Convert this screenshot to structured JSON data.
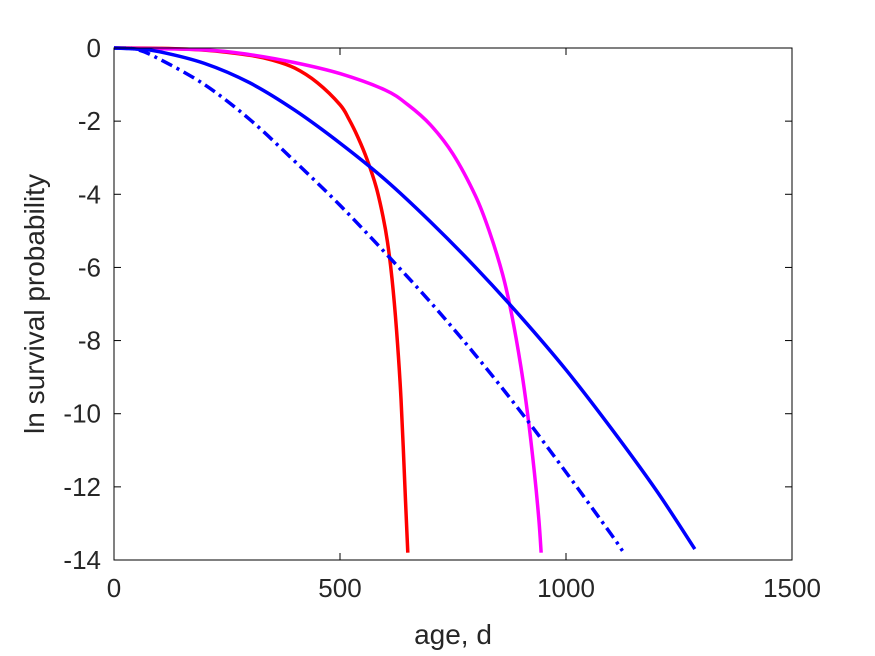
{
  "chart_data": {
    "type": "line",
    "title": "",
    "xlabel": "age, d",
    "ylabel": "ln survival probability",
    "xlim": [
      0,
      1500
    ],
    "ylim": [
      -14,
      0
    ],
    "xticks": [
      0,
      500,
      1000,
      1500
    ],
    "yticks": [
      0,
      -2,
      -4,
      -6,
      -8,
      -10,
      -12,
      -14
    ],
    "xtick_labels": [
      "0",
      "500",
      "1000",
      "1500"
    ],
    "ytick_labels": [
      "0",
      "-2",
      "-4",
      "-6",
      "-8",
      "-10",
      "-12",
      "-14"
    ],
    "grid": false,
    "legend": "none",
    "series": [
      {
        "color": "#ff0000",
        "style": "solid",
        "x": [
          0,
          100,
          200,
          300,
          350,
          400,
          450,
          500,
          520,
          540,
          560,
          580,
          595,
          605,
          615,
          625,
          635,
          645,
          650
        ],
        "y": [
          0,
          -0.01,
          -0.06,
          -0.2,
          -0.33,
          -0.55,
          -0.95,
          -1.55,
          -1.95,
          -2.45,
          -3.05,
          -3.8,
          -4.6,
          -5.3,
          -6.3,
          -7.7,
          -9.6,
          -12.4,
          -13.8
        ]
      },
      {
        "color": "#ff00ff",
        "style": "solid",
        "x": [
          0,
          200,
          300,
          400,
          500,
          600,
          650,
          700,
          750,
          800,
          830,
          860,
          880,
          900,
          915,
          930,
          940,
          945
        ],
        "y": [
          0,
          -0.05,
          -0.18,
          -0.4,
          -0.7,
          -1.15,
          -1.55,
          -2.1,
          -2.9,
          -4.05,
          -5.0,
          -6.2,
          -7.3,
          -8.7,
          -10.0,
          -11.6,
          -12.9,
          -13.8
        ]
      },
      {
        "color": "#0000ff",
        "style": "solid",
        "x": [
          0,
          50,
          100,
          200,
          300,
          400,
          500,
          600,
          700,
          800,
          900,
          1000,
          1100,
          1200,
          1285
        ],
        "y": [
          0,
          -0.03,
          -0.1,
          -0.42,
          -0.95,
          -1.7,
          -2.6,
          -3.6,
          -4.75,
          -6.0,
          -7.35,
          -8.8,
          -10.4,
          -12.1,
          -13.7
        ]
      },
      {
        "color": "#0000ff",
        "style": "dashdot",
        "x": [
          0,
          50,
          100,
          200,
          300,
          400,
          500,
          600,
          700,
          800,
          900,
          1000,
          1100,
          1125
        ],
        "y": [
          0,
          -0.04,
          -0.3,
          -1.0,
          -1.95,
          -3.1,
          -4.3,
          -5.6,
          -6.95,
          -8.4,
          -9.95,
          -11.6,
          -13.3,
          -13.75
        ]
      }
    ]
  }
}
